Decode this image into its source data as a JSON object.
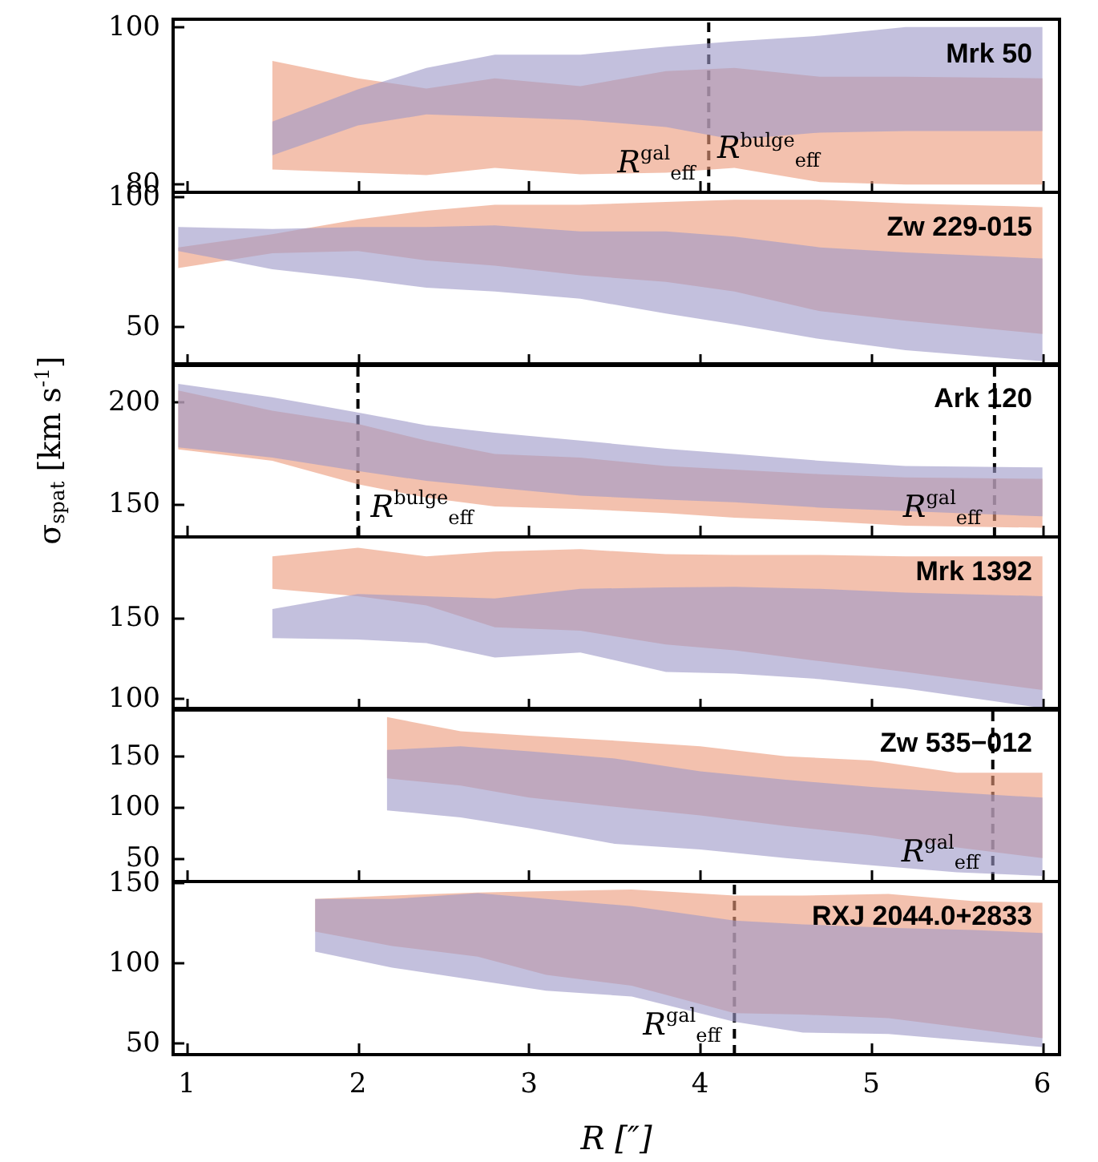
{
  "chart_data": [
    {
      "type": "area",
      "title": "Mrk 50",
      "xlim": [
        0.92,
        6.1
      ],
      "xticks": [
        1,
        2,
        3,
        4,
        5,
        6
      ],
      "ylim": [
        79,
        101
      ],
      "yticks": [
        80,
        100
      ],
      "tick_labels": "y",
      "series": [
        {
          "color": "#eb9b7c",
          "x": [
            1.5,
            2.0,
            2.4,
            2.8,
            3.3,
            3.8,
            4.2,
            4.7,
            5.2,
            6.0
          ],
          "values": [
            null,
            null,
            null,
            null,
            null,
            null,
            null,
            null,
            null,
            null
          ],
          "upper": [
            95.7,
            93.5,
            92.2,
            93.5,
            92.5,
            94.4,
            94.8,
            93.7,
            93.7,
            93.5
          ],
          "lower": [
            81.9,
            81.5,
            81.2,
            82.1,
            81.3,
            81.5,
            82.1,
            80.3,
            80,
            80
          ]
        },
        {
          "color": "#9e99c8",
          "x": [
            1.5,
            2.0,
            2.4,
            2.8,
            3.3,
            3.8,
            4.2,
            4.7,
            5.2,
            6.0
          ],
          "values": [
            null,
            null,
            null,
            null,
            null,
            null,
            null,
            null,
            null,
            null
          ],
          "upper": [
            88,
            92.1,
            94.8,
            96.5,
            96.5,
            97.5,
            98.2,
            98.9,
            100,
            100
          ],
          "lower": [
            83.7,
            87.5,
            88.9,
            88.6,
            88.2,
            87.3,
            85.7,
            86.6,
            86.8,
            86.8
          ]
        }
      ],
      "ref_lines": [
        {
          "axis": "x",
          "value": 4.05,
          "label": "R$^{gal}$$_{eff}$",
          "line_style": "dashed"
        }
      ],
      "annotations": [
        {
          "text": "R$^{bulge}$$_{eff}$",
          "x": 4.1,
          "y": 82
        }
      ]
    },
    {
      "type": "area",
      "title": "Zw 229-015",
      "xlim": [
        0.92,
        6.1
      ],
      "xticks": [
        1,
        2,
        3,
        4,
        5,
        6
      ],
      "ylim": [
        35,
        102
      ],
      "yticks": [
        50,
        100
      ],
      "tick_labels": "y",
      "series": [
        {
          "color": "#eb9b7c",
          "x": [
            0.95,
            1.5,
            2.0,
            2.4,
            2.8,
            3.3,
            3.8,
            4.2,
            4.7,
            5.2,
            6.0
          ],
          "values": [
            null,
            null,
            null,
            null,
            null,
            null,
            null,
            null,
            null,
            null,
            null
          ],
          "upper": [
            80.7,
            85.8,
            91.5,
            94.9,
            97.2,
            97.2,
            98.3,
            99.1,
            99.1,
            97.7,
            96.3
          ],
          "lower": [
            72.7,
            78.4,
            79.3,
            75.6,
            73.6,
            69.9,
            67.3,
            63.6,
            56,
            52.3,
            47.2
          ]
        },
        {
          "color": "#9e99c8",
          "x": [
            0.95,
            1.5,
            2.0,
            2.4,
            2.8,
            3.3,
            3.8,
            4.2,
            4.7,
            5.2,
            6.0
          ],
          "values": [
            null,
            null,
            null,
            null,
            null,
            null,
            null,
            null,
            null,
            null,
            null
          ],
          "upper": [
            88.6,
            87.8,
            88.6,
            88.6,
            89.2,
            86.9,
            86.9,
            84.9,
            80.7,
            78.7,
            76.4
          ],
          "lower": [
            79.3,
            72.2,
            68.5,
            65.1,
            63.6,
            60.8,
            55.1,
            50.9,
            45.2,
            40.9,
            36.6
          ]
        }
      ]
    },
    {
      "type": "area",
      "title": "Ark 120",
      "ylabel": "σ$_{spat}$ [km s$^{-1}$]",
      "xlim": [
        0.92,
        6.1
      ],
      "xticks": [
        1,
        2,
        3,
        4,
        5,
        6
      ],
      "ylim": [
        134,
        219
      ],
      "yticks": [
        150,
        200
      ],
      "tick_labels": "y",
      "series": [
        {
          "color": "#eb9b7c",
          "x": [
            0.95,
            1.5,
            2.0,
            2.4,
            2.8,
            3.3,
            3.8,
            4.2,
            4.7,
            5.2,
            6.0
          ],
          "values": [
            null,
            null,
            null,
            null,
            null,
            null,
            null,
            null,
            null,
            null,
            null
          ],
          "upper": [
            205.9,
            196,
            189.5,
            181.3,
            174.7,
            173,
            168.8,
            167.1,
            164.8,
            163.2,
            162.5
          ],
          "lower": [
            177,
            171.4,
            159.9,
            153.3,
            149,
            147.7,
            145.7,
            143.4,
            141.8,
            139.5,
            138.5
          ]
        },
        {
          "color": "#9e99c8",
          "x": [
            0.95,
            1.5,
            2.0,
            2.4,
            2.8,
            3.3,
            3.8,
            4.2,
            4.7,
            5.2,
            6.0
          ],
          "values": [
            null,
            null,
            null,
            null,
            null,
            null,
            null,
            null,
            null,
            null,
            null
          ],
          "upper": [
            209.2,
            202.6,
            195.1,
            188.8,
            185.2,
            181.3,
            177.3,
            174.7,
            171.4,
            168.8,
            168.1
          ],
          "lower": [
            178,
            173,
            166.4,
            161.5,
            158.2,
            154.3,
            152.3,
            151,
            148.4,
            146.7,
            144.1
          ]
        }
      ],
      "ref_lines": [
        {
          "axis": "x",
          "value": 2.0,
          "label": "R$^{bulge}$$_{eff}$",
          "line_style": "dashed"
        },
        {
          "axis": "x",
          "value": 5.72,
          "label": "R$^{gal}$$_{eff}$",
          "line_style": "dashed"
        }
      ]
    },
    {
      "type": "area",
      "title": "Mrk 1392",
      "xlim": [
        0.92,
        6.1
      ],
      "xticks": [
        1,
        2,
        3,
        4,
        5,
        6
      ],
      "ylim": [
        93,
        200
      ],
      "yticks": [
        100,
        150
      ],
      "tick_labels": "y",
      "series": [
        {
          "color": "#eb9b7c",
          "x": [
            1.5,
            2.0,
            2.4,
            2.8,
            3.3,
            3.8,
            4.2,
            4.7,
            5.2,
            6.0
          ],
          "values": [
            null,
            null,
            null,
            null,
            null,
            null,
            null,
            null,
            null,
            null
          ],
          "upper": [
            188,
            193.3,
            188,
            191,
            192.4,
            189.3,
            188.8,
            188.8,
            188,
            188
          ],
          "lower": [
            167.9,
            163.4,
            157.6,
            144.2,
            142,
            133.5,
            129.9,
            123.2,
            116.5,
            105.4
          ]
        },
        {
          "color": "#9e99c8",
          "x": [
            1.5,
            2.0,
            2.4,
            2.8,
            3.3,
            3.8,
            4.2,
            4.7,
            5.2,
            6.0
          ],
          "values": [
            null,
            null,
            null,
            null,
            null,
            null,
            null,
            null,
            null,
            null
          ],
          "upper": [
            155.4,
            164.7,
            163.4,
            162,
            167.9,
            168.8,
            169.2,
            167.9,
            165.6,
            163.4
          ],
          "lower": [
            137.5,
            136.6,
            134.4,
            125.4,
            128.6,
            116.5,
            115.6,
            112.1,
            106.3,
            94.2
          ]
        }
      ]
    },
    {
      "type": "area",
      "title": "Zw 535−012",
      "xlim": [
        0.92,
        6.1
      ],
      "xticks": [
        1,
        2,
        3,
        4,
        5,
        6
      ],
      "ylim": [
        27,
        197
      ],
      "yticks": [
        50,
        100,
        150
      ],
      "tick_labels": "y",
      "series": [
        {
          "color": "#eb9b7c",
          "x": [
            2.17,
            2.6,
            3.0,
            3.5,
            4.0,
            4.5,
            5.0,
            5.5,
            6.0
          ],
          "values": [
            null,
            null,
            null,
            null,
            null,
            null,
            null,
            null,
            null
          ],
          "upper": [
            188.5,
            174.5,
            170.3,
            165.4,
            159.8,
            150,
            145.8,
            133.9,
            133.9
          ],
          "lower": [
            128.3,
            121.3,
            109.4,
            100.3,
            92,
            81.5,
            72.4,
            60.5,
            50
          ]
        },
        {
          "color": "#9e99c8",
          "x": [
            2.17,
            2.6,
            3.0,
            3.5,
            4.0,
            4.5,
            5.0,
            5.5,
            6.0
          ],
          "values": [
            null,
            null,
            null,
            null,
            null,
            null,
            null,
            null,
            null
          ],
          "upper": [
            156.3,
            159.8,
            154.9,
            147.9,
            135.3,
            126.9,
            119.9,
            114.3,
            109.4
          ],
          "lower": [
            96.9,
            89.9,
            79.4,
            64,
            58.4,
            50,
            43,
            36,
            32.5
          ]
        }
      ],
      "ref_lines": [
        {
          "axis": "x",
          "value": 5.71,
          "label": "R$^{gal}$$_{eff}$",
          "line_style": "dashed"
        }
      ]
    },
    {
      "type": "area",
      "title": "RXJ 2044.0+2833",
      "xlabel": "R [″]",
      "xlim": [
        0.92,
        6.1
      ],
      "xticks": [
        1,
        2,
        3,
        4,
        5,
        6
      ],
      "ylim": [
        43,
        151
      ],
      "yticks": [
        50,
        100,
        150
      ],
      "series": [
        {
          "color": "#eb9b7c",
          "x": [
            1.75,
            2.2,
            2.7,
            3.1,
            3.6,
            4.2,
            4.6,
            5.1,
            5.6,
            6.0
          ],
          "values": [
            null,
            null,
            null,
            null,
            null,
            null,
            null,
            null,
            null,
            null
          ],
          "upper": [
            140.1,
            142.3,
            144.1,
            145,
            146,
            142.3,
            142.3,
            143.2,
            138.7,
            137.8
          ],
          "lower": [
            119.8,
            110.8,
            104.1,
            92.8,
            86,
            68.9,
            68,
            65.8,
            59,
            53.2
          ]
        },
        {
          "color": "#9e99c8",
          "x": [
            1.75,
            2.2,
            2.7,
            3.1,
            3.6,
            4.2,
            4.6,
            5.1,
            5.6,
            6.0
          ],
          "values": [
            null,
            null,
            null,
            null,
            null,
            null,
            null,
            null,
            null,
            null
          ],
          "upper": [
            140.1,
            140.1,
            143.7,
            140.1,
            135.6,
            126.6,
            124.3,
            122.1,
            120.7,
            118.9
          ],
          "lower": [
            107.2,
            97.3,
            89.2,
            82.9,
            79.3,
            63.5,
            56.8,
            55.9,
            51.4,
            47.7
          ]
        }
      ],
      "ref_lines": [
        {
          "axis": "x",
          "value": 4.2,
          "label": "R$^{gal}$$_{eff}$",
          "line_style": "dashed"
        }
      ]
    }
  ]
}
